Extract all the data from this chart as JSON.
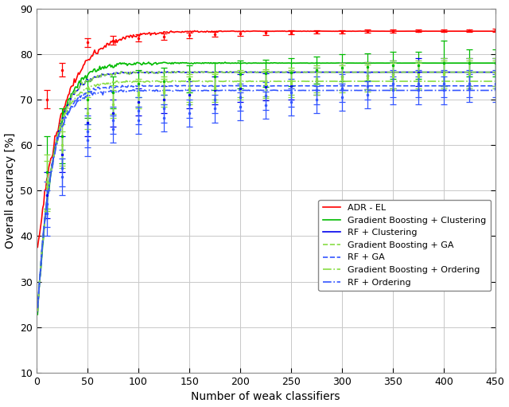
{
  "title": "",
  "xlabel": "Number of weak classifiers",
  "ylabel": "Overall accuracy [%]",
  "xlim": [
    0,
    450
  ],
  "ylim": [
    10,
    90
  ],
  "yticks": [
    10,
    20,
    30,
    40,
    50,
    60,
    70,
    80,
    90
  ],
  "xticks": [
    0,
    50,
    100,
    150,
    200,
    250,
    300,
    350,
    400,
    450
  ],
  "series": [
    {
      "label": "ADR - EL",
      "color": "#ff0000",
      "linestyle": "solid",
      "linewidth": 1.2,
      "x_start": 1,
      "x_end": 450,
      "a": 35.0,
      "b": 50.0,
      "c": 0.96,
      "noise": 0.6,
      "err_x": [
        10,
        25,
        50,
        75,
        100,
        125,
        150,
        175,
        200,
        225,
        250,
        275,
        300,
        325,
        350,
        375,
        400,
        425,
        450
      ],
      "err_y": [
        70.0,
        76.5,
        82.5,
        83.0,
        83.5,
        83.8,
        84.1,
        84.3,
        84.5,
        84.6,
        84.75,
        84.85,
        84.9,
        85.0,
        85.05,
        85.1,
        85.1,
        85.15,
        85.2
      ],
      "err_lo": [
        2.0,
        1.5,
        1.0,
        0.9,
        0.8,
        0.7,
        0.6,
        0.5,
        0.5,
        0.4,
        0.4,
        0.4,
        0.35,
        0.35,
        0.3,
        0.3,
        0.3,
        0.3,
        0.3
      ],
      "err_hi": [
        2.0,
        1.5,
        1.0,
        0.9,
        0.8,
        0.7,
        0.6,
        0.5,
        0.5,
        0.4,
        0.4,
        0.4,
        0.35,
        0.35,
        0.3,
        0.3,
        0.3,
        0.3,
        0.3
      ]
    },
    {
      "label": "Gradient Boosting + Clustering",
      "color": "#00bb00",
      "linestyle": "solid",
      "linewidth": 1.2,
      "x_start": 1,
      "x_end": 450,
      "a": 20.0,
      "b": 58.0,
      "c": 0.94,
      "noise": 0.5,
      "err_x": [
        10,
        25,
        50,
        75,
        100,
        125,
        150,
        175,
        200,
        225,
        250,
        275,
        300,
        325,
        350,
        375,
        400,
        425,
        450
      ],
      "err_y": [
        54.0,
        62.0,
        70.0,
        71.5,
        73.5,
        74.0,
        74.5,
        75.0,
        75.5,
        75.7,
        76.0,
        76.5,
        77.0,
        77.2,
        77.5,
        77.5,
        78.0,
        78.0,
        78.0
      ],
      "err_lo": [
        8.0,
        6.0,
        4.0,
        3.5,
        3.0,
        3.0,
        3.0,
        3.0,
        3.0,
        3.0,
        3.0,
        3.0,
        3.0,
        3.0,
        3.0,
        3.0,
        5.0,
        3.0,
        3.0
      ],
      "err_hi": [
        8.0,
        6.0,
        4.0,
        3.5,
        3.0,
        3.0,
        3.0,
        3.0,
        3.0,
        3.0,
        3.0,
        3.0,
        3.0,
        3.0,
        3.0,
        3.0,
        5.0,
        3.0,
        3.0
      ]
    },
    {
      "label": "RF + Clustering",
      "color": "#0000ee",
      "linestyle": "solid",
      "linewidth": 1.2,
      "x_start": 1,
      "x_end": 450,
      "a": 20.0,
      "b": 56.0,
      "c": 0.935,
      "noise": 0.4,
      "err_x": [
        10,
        25,
        50,
        75,
        100,
        125,
        150,
        175,
        200,
        225,
        250,
        275,
        300,
        325,
        350,
        375,
        400,
        425,
        450
      ],
      "err_y": [
        49.0,
        58.0,
        65.0,
        67.0,
        69.5,
        70.0,
        71.0,
        72.0,
        72.5,
        72.8,
        73.0,
        74.0,
        75.0,
        75.2,
        75.5,
        76.0,
        76.0,
        76.0,
        76.0
      ],
      "err_lo": [
        5.0,
        4.0,
        3.0,
        3.0,
        3.0,
        3.0,
        3.0,
        3.0,
        3.0,
        3.0,
        3.0,
        3.0,
        3.0,
        3.0,
        3.0,
        3.0,
        3.0,
        3.0,
        3.0
      ],
      "err_hi": [
        5.0,
        4.0,
        3.0,
        3.0,
        3.0,
        3.0,
        3.0,
        3.0,
        3.0,
        3.0,
        3.0,
        3.0,
        3.0,
        3.0,
        3.0,
        3.0,
        3.0,
        3.0,
        3.0
      ]
    },
    {
      "label": "Gradient Boosting + GA",
      "color": "#88dd44",
      "linestyle": "dashed",
      "linewidth": 1.2,
      "x_start": 1,
      "x_end": 450,
      "a": 20.0,
      "b": 56.0,
      "c": 0.935,
      "noise": 0.45,
      "err_x": [
        10,
        25,
        50,
        75,
        100,
        125,
        150,
        175,
        200,
        225,
        250,
        275,
        300,
        325,
        350,
        375,
        400,
        425,
        450
      ],
      "err_y": [
        52.0,
        60.0,
        68.0,
        70.0,
        71.5,
        72.0,
        72.5,
        73.0,
        73.5,
        73.7,
        74.0,
        74.5,
        75.0,
        75.2,
        75.5,
        75.5,
        76.0,
        76.0,
        76.0
      ],
      "err_lo": [
        6.0,
        4.5,
        3.5,
        3.2,
        3.0,
        3.0,
        3.0,
        3.0,
        3.0,
        3.0,
        3.0,
        3.0,
        3.0,
        3.0,
        3.0,
        3.0,
        3.0,
        3.0,
        3.0
      ],
      "err_hi": [
        6.0,
        4.5,
        3.5,
        3.2,
        3.0,
        3.0,
        3.0,
        3.0,
        3.0,
        3.0,
        3.0,
        3.0,
        3.0,
        3.0,
        3.0,
        3.0,
        3.0,
        3.0,
        3.0
      ]
    },
    {
      "label": "RF + GA",
      "color": "#3355ff",
      "linestyle": "dashed",
      "linewidth": 1.2,
      "x_start": 1,
      "x_end": 450,
      "a": 20.0,
      "b": 53.0,
      "c": 0.93,
      "noise": 0.4,
      "err_x": [
        10,
        25,
        50,
        75,
        100,
        125,
        150,
        175,
        200,
        225,
        250,
        275,
        300,
        325,
        350,
        375,
        400,
        425,
        450
      ],
      "err_y": [
        47.0,
        55.0,
        63.0,
        65.5,
        67.5,
        68.0,
        69.0,
        70.0,
        70.5,
        70.8,
        71.5,
        72.0,
        72.5,
        73.0,
        73.5,
        73.5,
        73.5,
        73.5,
        73.5
      ],
      "err_lo": [
        5.0,
        4.0,
        3.5,
        3.0,
        3.0,
        3.0,
        3.0,
        3.0,
        3.0,
        3.0,
        3.0,
        3.0,
        3.0,
        3.0,
        3.0,
        3.0,
        3.0,
        3.0,
        3.0
      ],
      "err_hi": [
        5.0,
        4.0,
        3.5,
        3.0,
        3.0,
        3.0,
        3.0,
        3.0,
        3.0,
        3.0,
        3.0,
        3.0,
        3.0,
        3.0,
        3.0,
        3.0,
        3.0,
        3.0,
        3.0
      ]
    },
    {
      "label": "Gradient Boosting + Ordering",
      "color": "#88dd44",
      "linestyle": "dashdot",
      "linewidth": 1.2,
      "x_start": 1,
      "x_end": 450,
      "a": 20.0,
      "b": 54.0,
      "c": 0.932,
      "noise": 0.45,
      "err_x": [
        10,
        25,
        50,
        75,
        100,
        125,
        150,
        175,
        200,
        225,
        250,
        275,
        300,
        325,
        350,
        375,
        400,
        425,
        450
      ],
      "err_y": [
        51.0,
        59.0,
        67.0,
        69.0,
        71.0,
        71.5,
        72.0,
        72.5,
        73.0,
        73.3,
        73.5,
        74.0,
        74.5,
        74.7,
        75.0,
        75.0,
        75.5,
        75.5,
        75.5
      ],
      "err_lo": [
        5.5,
        4.0,
        3.5,
        3.0,
        3.0,
        3.0,
        3.0,
        3.0,
        3.0,
        3.0,
        3.0,
        3.0,
        3.0,
        3.0,
        3.0,
        3.0,
        3.0,
        3.0,
        3.0
      ],
      "err_hi": [
        5.5,
        4.0,
        3.5,
        3.0,
        3.0,
        3.0,
        3.0,
        3.0,
        3.0,
        3.0,
        3.0,
        3.0,
        3.0,
        3.0,
        3.0,
        3.0,
        3.0,
        3.0,
        3.0
      ]
    },
    {
      "label": "RF + Ordering",
      "color": "#3355ff",
      "linestyle": "dashdot",
      "linewidth": 1.2,
      "x_start": 1,
      "x_end": 450,
      "a": 20.0,
      "b": 52.0,
      "c": 0.928,
      "noise": 0.4,
      "err_x": [
        10,
        25,
        50,
        75,
        100,
        125,
        150,
        175,
        200,
        225,
        250,
        275,
        300,
        325,
        350,
        375,
        400,
        425,
        450
      ],
      "err_y": [
        45.0,
        53.0,
        61.0,
        63.5,
        65.5,
        66.0,
        67.0,
        68.0,
        68.5,
        68.8,
        69.5,
        70.0,
        70.5,
        71.0,
        72.0,
        72.0,
        72.0,
        72.5,
        72.5
      ],
      "err_lo": [
        5.0,
        4.0,
        3.5,
        3.0,
        3.0,
        3.0,
        3.0,
        3.0,
        3.0,
        3.0,
        3.0,
        3.0,
        3.0,
        3.0,
        3.0,
        3.0,
        3.0,
        3.0,
        3.0
      ],
      "err_hi": [
        5.0,
        4.0,
        3.5,
        3.0,
        3.0,
        3.0,
        3.0,
        3.0,
        3.0,
        3.0,
        3.0,
        3.0,
        3.0,
        3.0,
        3.0,
        3.0,
        3.0,
        3.0,
        3.0
      ]
    }
  ],
  "legend_loc": "lower right",
  "background_color": "#ffffff",
  "grid_color": "#c8c8c8"
}
